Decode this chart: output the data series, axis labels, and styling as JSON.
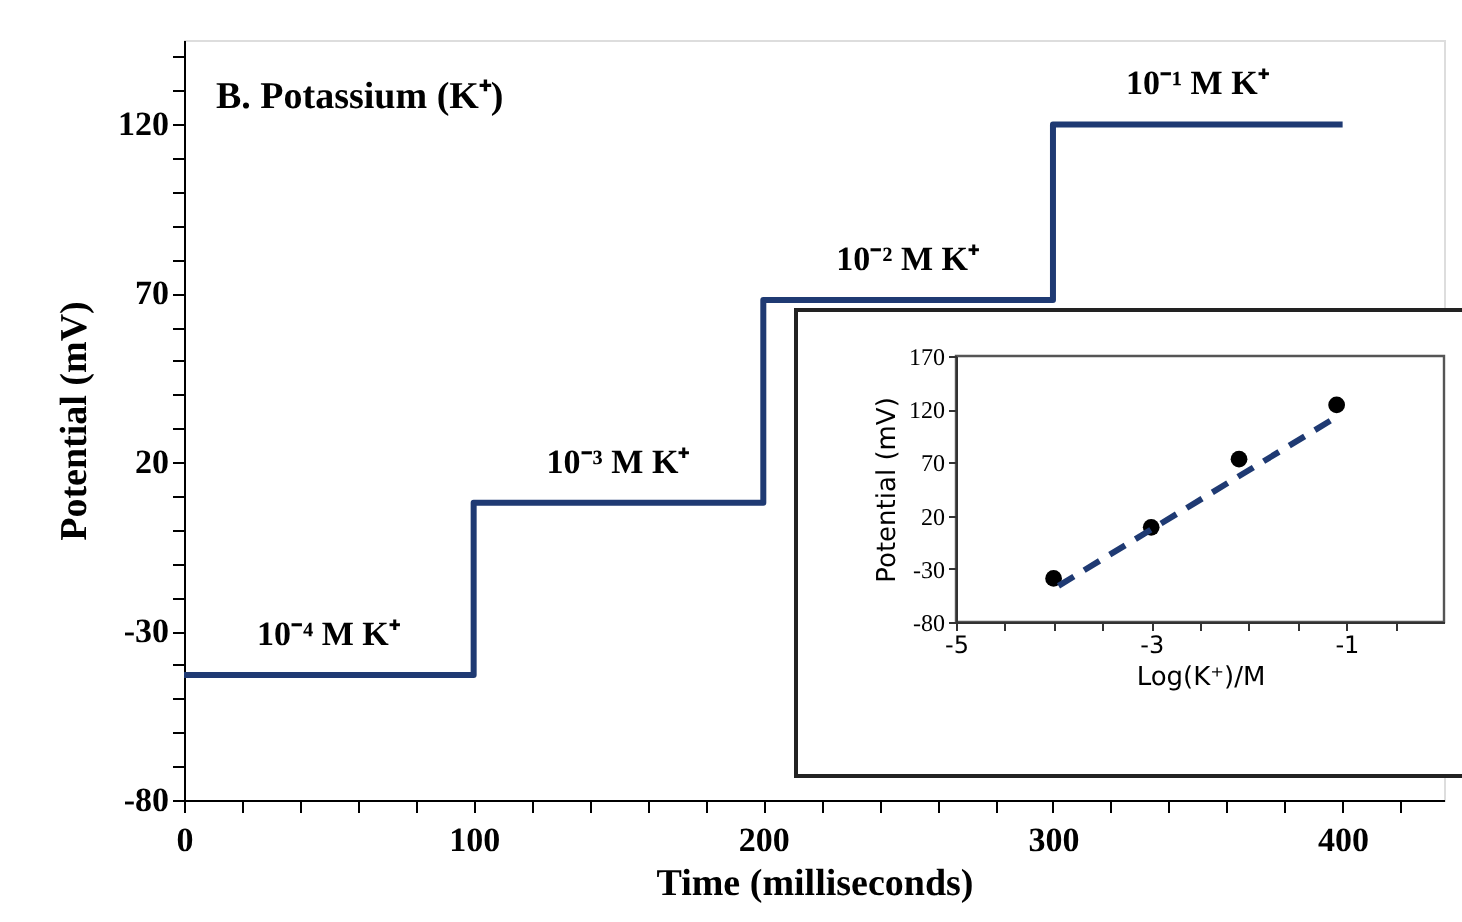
{
  "chart_data": [
    {
      "type": "step",
      "title": "B. Potassium  (K⁺)",
      "xlabel": "Time (milliseconds)",
      "ylabel": "Potential (mV)",
      "x": [
        0,
        100,
        200,
        300,
        400
      ],
      "series": [
        {
          "color": "#1f3a73",
          "values": [
            -43,
            8,
            68,
            120,
            120
          ]
        }
      ],
      "xlim": [
        0,
        435
      ],
      "ylim": [
        -80,
        145
      ],
      "xticks": [
        0,
        {
          "value": 20,
          "label": null
        },
        {
          "value": 40,
          "label": null
        },
        {
          "value": 60,
          "label": null
        },
        {
          "value": 80,
          "label": null
        },
        100,
        {
          "value": 120,
          "label": null
        },
        {
          "value": 140,
          "label": null
        },
        {
          "value": 160,
          "label": null
        },
        {
          "value": 180,
          "label": null
        },
        200,
        {
          "value": 220,
          "label": null
        },
        {
          "value": 240,
          "label": null
        },
        {
          "value": 260,
          "label": null
        },
        {
          "value": 280,
          "label": null
        },
        300,
        {
          "value": 320,
          "label": null
        },
        {
          "value": 340,
          "label": null
        },
        {
          "value": 360,
          "label": null
        },
        {
          "value": 380,
          "label": null
        },
        400,
        {
          "value": 420,
          "label": null
        }
      ],
      "yticks": [
        -80,
        {
          "value": -70,
          "label": null
        },
        {
          "value": -60,
          "label": null
        },
        {
          "value": -50,
          "label": null
        },
        {
          "value": -40,
          "label": null
        },
        -30,
        {
          "value": -20,
          "label": null
        },
        {
          "value": -10,
          "label": null
        },
        {
          "value": 0,
          "label": null
        },
        {
          "value": 10,
          "label": null
        },
        20,
        {
          "value": 30,
          "label": null
        },
        {
          "value": 40,
          "label": null
        },
        {
          "value": 50,
          "label": null
        },
        {
          "value": 60,
          "label": null
        },
        70,
        {
          "value": 80,
          "label": null
        },
        {
          "value": 90,
          "label": null
        },
        {
          "value": 100,
          "label": null
        },
        {
          "value": 110,
          "label": null
        },
        120,
        {
          "value": 130,
          "label": null
        },
        {
          "value": 140,
          "label": null
        }
      ],
      "grid": false,
      "line_style": "solid",
      "annotations": [
        "10⁻⁴ M K⁺",
        "10⁻³ M K⁺",
        "10⁻² M K⁺",
        "10⁻¹ M K⁺"
      ]
    },
    {
      "type": "scatter",
      "xlabel": "Log(K⁺)/M",
      "ylabel": "Potential (mV)",
      "series": [
        {
          "type": "scatter",
          "color": "#000000",
          "marker": "circle",
          "x": [
            -4.0,
            -3.0,
            -2.1,
            -1.1
          ],
          "values": [
            -39,
            9,
            73,
            124
          ]
        },
        {
          "type": "line",
          "color": "#1f3a73",
          "line_style": "dashed",
          "x": [
            -3.95,
            -1.15
          ],
          "values": [
            -46,
            110
          ]
        }
      ],
      "xlim": [
        -5,
        0
      ],
      "ylim": [
        -80,
        170
      ],
      "xticks": [
        -5,
        {
          "value": -4.5,
          "label": null
        },
        {
          "value": -4,
          "label": null
        },
        {
          "value": -3.5,
          "label": null
        },
        -3,
        {
          "value": -2.5,
          "label": null
        },
        {
          "value": -2,
          "label": null
        },
        {
          "value": -1.5,
          "label": null
        },
        -1,
        {
          "value": -0.5,
          "label": null
        }
      ],
      "yticks": [
        -80,
        -30,
        20,
        70,
        120,
        170
      ],
      "grid": false
    }
  ]
}
